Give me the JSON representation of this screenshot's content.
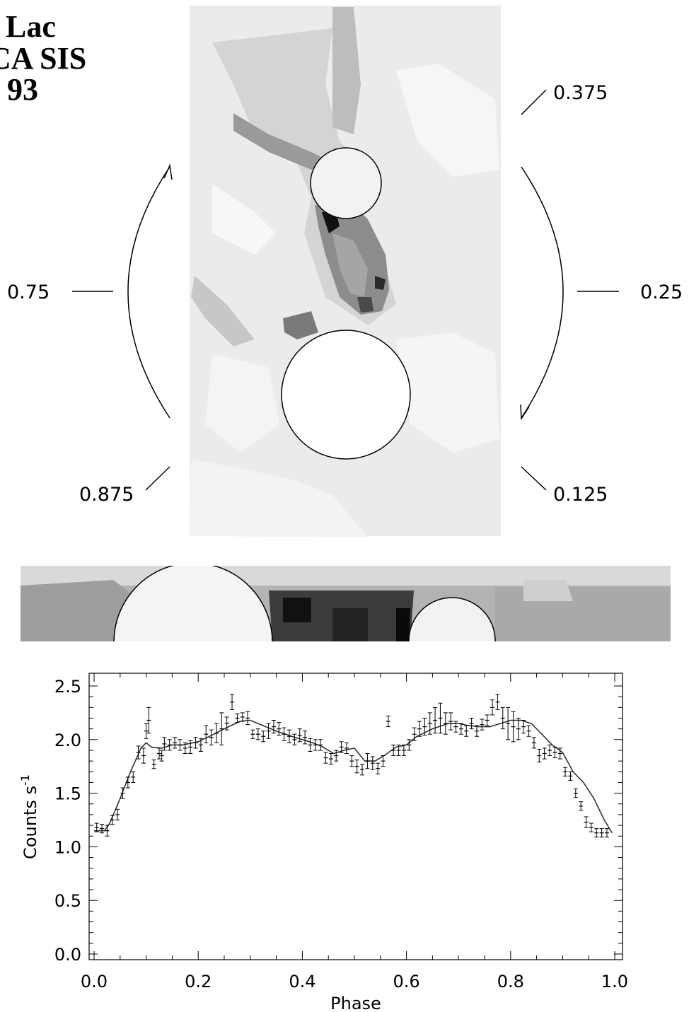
{
  "title_lines": [
    "Lac",
    "CA SIS",
    "93"
  ],
  "phase_markers": {
    "p0375": "0.375",
    "p075": "0.75",
    "p025": "0.25",
    "p0875": "0.875",
    "p0125": "0.125"
  },
  "chart_data": {
    "type": "scatter",
    "xlabel": "Phase",
    "ylabel": "Counts s",
    "ylabel_superscript": "-1",
    "xlim": [
      0.0,
      1.0
    ],
    "ylim": [
      0.0,
      2.6
    ],
    "x_ticks": [
      "0.0",
      "0.2",
      "0.4",
      "0.6",
      "0.8",
      "1.0"
    ],
    "y_ticks": [
      "0.0",
      "0.5",
      "1.0",
      "1.5",
      "2.0",
      "2.5"
    ],
    "series": [
      {
        "style": "points-with-error-bars",
        "x": [
          0.005,
          0.015,
          0.025,
          0.035,
          0.045,
          0.055,
          0.065,
          0.075,
          0.085,
          0.095,
          0.1,
          0.105,
          0.115,
          0.125,
          0.13,
          0.135,
          0.145,
          0.155,
          0.165,
          0.175,
          0.185,
          0.195,
          0.205,
          0.215,
          0.225,
          0.235,
          0.245,
          0.255,
          0.265,
          0.275,
          0.285,
          0.295,
          0.305,
          0.315,
          0.325,
          0.335,
          0.345,
          0.355,
          0.365,
          0.375,
          0.385,
          0.395,
          0.405,
          0.415,
          0.425,
          0.435,
          0.445,
          0.455,
          0.465,
          0.475,
          0.485,
          0.495,
          0.505,
          0.515,
          0.525,
          0.535,
          0.545,
          0.555,
          0.565,
          0.575,
          0.585,
          0.595,
          0.605,
          0.615,
          0.625,
          0.635,
          0.645,
          0.655,
          0.665,
          0.675,
          0.685,
          0.695,
          0.705,
          0.715,
          0.725,
          0.735,
          0.745,
          0.755,
          0.765,
          0.775,
          0.785,
          0.795,
          0.805,
          0.815,
          0.825,
          0.835,
          0.845,
          0.855,
          0.865,
          0.875,
          0.885,
          0.895,
          0.905,
          0.915,
          0.925,
          0.935,
          0.945,
          0.955,
          0.965,
          0.975,
          0.985
        ],
        "y": [
          1.18,
          1.17,
          1.15,
          1.25,
          1.3,
          1.5,
          1.6,
          1.65,
          1.88,
          1.85,
          2.08,
          2.18,
          1.77,
          1.87,
          1.85,
          1.96,
          1.95,
          1.97,
          1.95,
          1.92,
          1.93,
          1.97,
          1.95,
          2.05,
          2.02,
          2.06,
          2.1,
          2.15,
          2.35,
          2.2,
          2.21,
          2.2,
          2.05,
          2.05,
          2.03,
          2.08,
          2.12,
          2.1,
          2.05,
          2.03,
          2.0,
          2.04,
          2.02,
          1.95,
          1.95,
          1.95,
          1.83,
          1.82,
          1.85,
          1.93,
          1.92,
          1.8,
          1.75,
          1.72,
          1.8,
          1.78,
          1.73,
          1.8,
          2.17,
          1.9,
          1.9,
          1.9,
          1.95,
          2.05,
          2.1,
          2.12,
          2.15,
          2.18,
          2.2,
          2.15,
          2.17,
          2.12,
          2.1,
          2.08,
          2.15,
          2.08,
          2.14,
          2.18,
          2.3,
          2.35,
          2.2,
          2.15,
          2.12,
          2.1,
          2.12,
          2.08,
          1.97,
          1.85,
          1.87,
          1.9,
          1.88,
          1.87,
          1.7,
          1.66,
          1.5,
          1.38,
          1.23,
          1.18,
          1.13,
          1.13,
          1.13
        ],
        "err": [
          0.04,
          0.04,
          0.05,
          0.04,
          0.05,
          0.05,
          0.05,
          0.05,
          0.06,
          0.07,
          0.07,
          0.12,
          0.04,
          0.05,
          0.05,
          0.06,
          0.05,
          0.05,
          0.05,
          0.05,
          0.06,
          0.05,
          0.06,
          0.08,
          0.07,
          0.09,
          0.15,
          0.06,
          0.07,
          0.04,
          0.04,
          0.06,
          0.04,
          0.05,
          0.05,
          0.07,
          0.06,
          0.06,
          0.06,
          0.06,
          0.05,
          0.06,
          0.06,
          0.06,
          0.05,
          0.05,
          0.05,
          0.05,
          0.05,
          0.05,
          0.05,
          0.05,
          0.06,
          0.05,
          0.07,
          0.06,
          0.05,
          0.05,
          0.05,
          0.05,
          0.05,
          0.05,
          0.05,
          0.06,
          0.07,
          0.08,
          0.1,
          0.12,
          0.14,
          0.1,
          0.08,
          0.05,
          0.05,
          0.05,
          0.05,
          0.05,
          0.05,
          0.05,
          0.07,
          0.07,
          0.1,
          0.15,
          0.14,
          0.1,
          0.06,
          0.05,
          0.05,
          0.06,
          0.05,
          0.05,
          0.05,
          0.05,
          0.04,
          0.04,
          0.04,
          0.04,
          0.05,
          0.04,
          0.04,
          0.04,
          0.04
        ]
      },
      {
        "style": "smooth-model-line",
        "x": [
          0.0,
          0.02,
          0.03,
          0.05,
          0.07,
          0.09,
          0.1,
          0.11,
          0.13,
          0.15,
          0.17,
          0.2,
          0.23,
          0.25,
          0.28,
          0.3,
          0.32,
          0.35,
          0.38,
          0.4,
          0.42,
          0.44,
          0.46,
          0.48,
          0.5,
          0.52,
          0.54,
          0.56,
          0.58,
          0.6,
          0.62,
          0.65,
          0.68,
          0.7,
          0.72,
          0.74,
          0.76,
          0.78,
          0.8,
          0.82,
          0.84,
          0.86,
          0.88,
          0.9,
          0.92,
          0.94,
          0.96,
          0.98,
          0.995
        ],
        "y": [
          1.15,
          1.15,
          1.22,
          1.45,
          1.7,
          1.92,
          1.97,
          1.93,
          1.92,
          1.95,
          1.95,
          1.98,
          2.05,
          2.1,
          2.17,
          2.18,
          2.14,
          2.08,
          2.03,
          2.0,
          1.97,
          1.93,
          1.87,
          1.9,
          1.92,
          1.8,
          1.8,
          1.86,
          1.93,
          1.95,
          2.03,
          2.1,
          2.15,
          2.15,
          2.13,
          2.12,
          2.12,
          2.15,
          2.18,
          2.18,
          2.15,
          2.05,
          1.95,
          1.88,
          1.7,
          1.6,
          1.45,
          1.25,
          1.13
        ]
      }
    ]
  }
}
